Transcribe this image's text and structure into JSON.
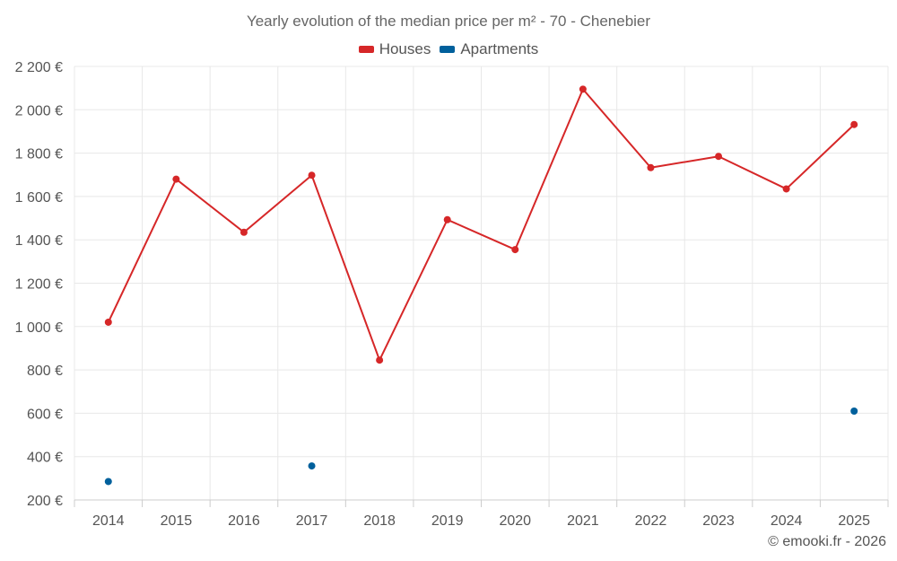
{
  "chart_data": {
    "type": "line",
    "title": "Yearly evolution of the median price per m² - 70 - Chenebier",
    "xlabel": "",
    "ylabel": "",
    "categories": [
      "2014",
      "2015",
      "2016",
      "2017",
      "2018",
      "2019",
      "2020",
      "2021",
      "2022",
      "2023",
      "2024",
      "2025"
    ],
    "ylim": [
      200,
      2200
    ],
    "yticks": [
      200,
      400,
      600,
      800,
      1000,
      1200,
      1400,
      1600,
      1800,
      2000,
      2200
    ],
    "ytick_labels": [
      "200 €",
      "400 €",
      "600 €",
      "800 €",
      "1 000 €",
      "1 200 €",
      "1 400 €",
      "1 600 €",
      "1 800 €",
      "2 000 €",
      "2 200 €"
    ],
    "grid": true,
    "legend_position": "top-center",
    "series": [
      {
        "name": "Houses",
        "color": "#d62728",
        "show_line": true,
        "values": [
          1020,
          1680,
          1435,
          1698,
          845,
          1493,
          1355,
          2095,
          1733,
          1785,
          1635,
          1932
        ]
      },
      {
        "name": "Apartments",
        "color": "#00609c",
        "show_line": false,
        "values": [
          285,
          null,
          null,
          357,
          null,
          null,
          null,
          null,
          null,
          null,
          null,
          610
        ]
      }
    ]
  },
  "credit": "© emooki.fr - 2026"
}
